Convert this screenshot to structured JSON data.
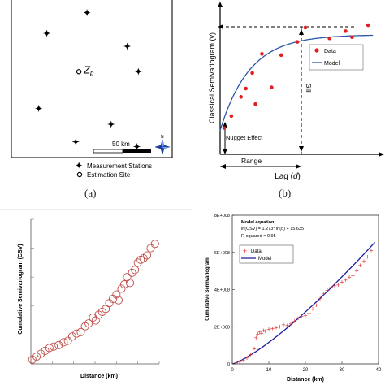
{
  "panel_a": {
    "caption": "(a)",
    "scale_label": "50 km",
    "north_label": "N",
    "site_label": "Z",
    "site_subscript": "p",
    "legend": {
      "stations": "Measurement Stations",
      "site": "Estimation Site"
    }
  },
  "panel_b": {
    "caption": "(b)",
    "ylabel": "Classical Semivariogram (γ)",
    "xlabel_prefix": "Lag (",
    "xlabel_var": "d",
    "xlabel_suffix": ")",
    "sill_label": "Sill",
    "nugget_label": "Nugget Effect",
    "range_label": "Range",
    "legend": {
      "data": "Data",
      "model": "Model"
    },
    "colors": {
      "points": "#e02020",
      "curve": "#2b57a7"
    }
  },
  "panel_c": {
    "xlabel": "Distance (km)",
    "ylabel": "Cumulative Semivariogram (CSV)",
    "colors": {
      "markers": "#c0504d"
    }
  },
  "panel_d": {
    "xlabel": "Distance (km)",
    "ylabel": "Cumulative Semivariogram",
    "equation_title": "Model equation",
    "equation": "ln(CSV) = 1.273* ln(d) + 15.635",
    "r_squared": "R-squared = 0.95",
    "legend": {
      "data": "Data",
      "model": "Model"
    },
    "colors": {
      "data": "#e03030",
      "model": "#1a1aa0"
    }
  },
  "chart_data": [
    {
      "type": "scatter",
      "panel": "a",
      "stations": [
        [
          0.47,
          0.08
        ],
        [
          0.22,
          0.21
        ],
        [
          0.72,
          0.29
        ],
        [
          0.79,
          0.45
        ],
        [
          0.17,
          0.68
        ],
        [
          0.62,
          0.78
        ],
        [
          0.4,
          0.89
        ],
        [
          0.78,
          0.92
        ]
      ],
      "site": [
        0.45,
        0.43
      ]
    },
    {
      "type": "scatter",
      "panel": "b",
      "series": [
        {
          "name": "Data",
          "marker": "point",
          "x": [
            0.25,
            0.7,
            1.3,
            1.6,
            2.0,
            2.2,
            2.6,
            3.2,
            3.8,
            4.8,
            5.3,
            6.2,
            6.8,
            7.8,
            8.2,
            9.2
          ],
          "y": [
            0.22,
            0.32,
            0.48,
            0.55,
            0.68,
            0.42,
            0.84,
            0.56,
            0.83,
            0.94,
            1.06,
            0.73,
            0.97,
            1.03,
            0.98,
            1.08
          ]
        },
        {
          "name": "Model",
          "marker": "line",
          "type": "exponential",
          "nugget": 0.2,
          "sill": 1.0,
          "range": 5.5
        }
      ],
      "xlim": [
        0,
        10
      ],
      "ylim": [
        0,
        1.25
      ]
    },
    {
      "type": "scatter",
      "panel": "c",
      "x": [
        0.2,
        0.8,
        1.4,
        2.0,
        2.6,
        3.2,
        3.9,
        4.6,
        5.2,
        5.8,
        6.4,
        7.0,
        7.6,
        8.1,
        8.7,
        9.1,
        9.5,
        10.0,
        10.5,
        11.0,
        11.5,
        12.0,
        12.3,
        12.7,
        13.1,
        13.5,
        13.9,
        14.2,
        14.6,
        15.0,
        15.4,
        15.8,
        16.3,
        16.8,
        17.4
      ],
      "y": [
        0.03,
        0.05,
        0.07,
        0.09,
        0.11,
        0.12,
        0.13,
        0.15,
        0.16,
        0.19,
        0.21,
        0.22,
        0.26,
        0.28,
        0.32,
        0.3,
        0.34,
        0.36,
        0.38,
        0.42,
        0.45,
        0.48,
        0.44,
        0.52,
        0.55,
        0.6,
        0.56,
        0.63,
        0.65,
        0.7,
        0.72,
        0.73,
        0.75,
        0.8,
        0.83
      ],
      "xlim": [
        0,
        18
      ],
      "ylim": [
        0,
        1
      ]
    },
    {
      "type": "line",
      "panel": "d",
      "xlim": [
        0,
        40
      ],
      "ylim": [
        0,
        800000000
      ],
      "xticks": [
        "0",
        "10",
        "20",
        "30",
        "40"
      ],
      "yticks": [
        "0",
        "2E+008",
        "4E+008",
        "6E+008",
        "8E+008"
      ],
      "series": [
        {
          "name": "Data",
          "marker": "plus",
          "x": [
            1,
            2,
            3,
            4,
            5,
            6,
            6.5,
            7,
            7.5,
            8,
            8.5,
            9,
            10,
            11,
            12,
            13,
            14,
            15,
            16,
            17,
            18,
            19,
            20,
            21,
            22,
            23,
            24,
            25,
            26,
            27,
            28,
            29,
            30,
            31,
            32,
            33,
            34,
            35,
            36,
            37,
            38
          ],
          "y": [
            5000000.0,
            10000000.0,
            20000000.0,
            30000000.0,
            50000000.0,
            80000000.0,
            140000000.0,
            160000000.0,
            170000000.0,
            165000000.0,
            180000000.0,
            175000000.0,
            185000000.0,
            190000000.0,
            195000000.0,
            200000000.0,
            210000000.0,
            205000000.0,
            215000000.0,
            230000000.0,
            245000000.0,
            255000000.0,
            260000000.0,
            270000000.0,
            295000000.0,
            315000000.0,
            350000000.0,
            375000000.0,
            395000000.0,
            410000000.0,
            420000000.0,
            425000000.0,
            440000000.0,
            450000000.0,
            465000000.0,
            475000000.0,
            500000000.0,
            530000000.0,
            550000000.0,
            575000000.0,
            610000000.0
          ]
        },
        {
          "name": "Model",
          "marker": "line",
          "a": 1.273,
          "b": 15.635
        }
      ]
    }
  ]
}
